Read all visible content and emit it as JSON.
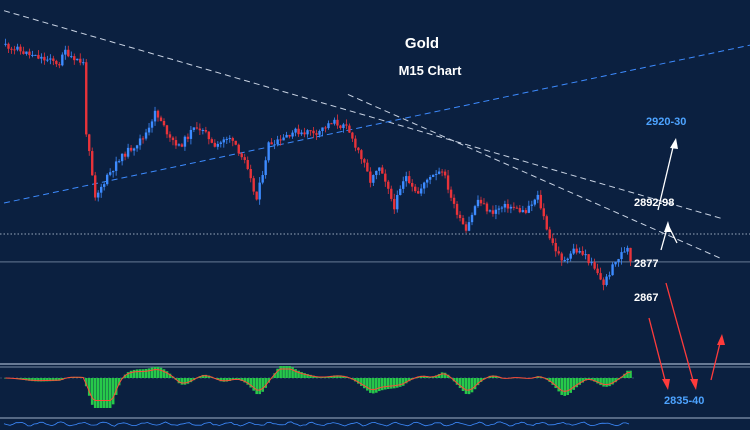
{
  "chart_data": {
    "type": "candlestick",
    "title": "Gold",
    "subtitle": "M15 Chart",
    "y_range": [
      2828,
      2936
    ],
    "candle_count": 210,
    "close_path": [
      [
        0,
        2928
      ],
      [
        10,
        2924
      ],
      [
        18,
        2922
      ],
      [
        20,
        2926
      ],
      [
        26,
        2922
      ],
      [
        27,
        2900
      ],
      [
        30,
        2878
      ],
      [
        34,
        2886
      ],
      [
        40,
        2893
      ],
      [
        46,
        2898
      ],
      [
        50,
        2906
      ],
      [
        54,
        2900
      ],
      [
        58,
        2895
      ],
      [
        64,
        2902
      ],
      [
        70,
        2896
      ],
      [
        76,
        2898
      ],
      [
        80,
        2890
      ],
      [
        84,
        2878
      ],
      [
        88,
        2896
      ],
      [
        96,
        2900
      ],
      [
        104,
        2900
      ],
      [
        110,
        2903
      ],
      [
        114,
        2901
      ],
      [
        118,
        2894
      ],
      [
        122,
        2884
      ],
      [
        125,
        2888
      ],
      [
        130,
        2876
      ],
      [
        134,
        2886
      ],
      [
        138,
        2880
      ],
      [
        142,
        2886
      ],
      [
        146,
        2888
      ],
      [
        150,
        2876
      ],
      [
        154,
        2869
      ],
      [
        158,
        2878
      ],
      [
        162,
        2874
      ],
      [
        168,
        2876
      ],
      [
        174,
        2874
      ],
      [
        178,
        2879
      ],
      [
        182,
        2866
      ],
      [
        186,
        2858
      ],
      [
        190,
        2862
      ],
      [
        194,
        2860
      ],
      [
        200,
        2851
      ],
      [
        204,
        2858
      ],
      [
        208,
        2863
      ],
      [
        209,
        2859
      ]
    ],
    "trendlines": [
      {
        "style": "white-dashed",
        "from": [
          0,
          2939
        ],
        "to": [
          240,
          2872
        ]
      },
      {
        "style": "white-dashed",
        "from": [
          115,
          2912
        ],
        "to": [
          240,
          2859
        ]
      },
      {
        "style": "blue-dashed",
        "from": [
          0,
          2877
        ],
        "to": [
          250,
          2928
        ]
      }
    ],
    "horizontal_levels": [
      {
        "value": 2867,
        "style": "dotted"
      },
      {
        "value": 2858,
        "style": "solid"
      }
    ],
    "annotations": [
      {
        "text": "2920-30",
        "color": "#4da3ff",
        "price": 2925
      },
      {
        "text": "2892-98",
        "color": "#ffffff",
        "price": 2895
      },
      {
        "text": "2877",
        "color": "#ffffff",
        "price": 2877
      },
      {
        "text": "2867",
        "color": "#ffffff",
        "price": 2867
      },
      {
        "text": "2835-40",
        "color": "#4da3ff",
        "price": 2838
      }
    ],
    "colors": {
      "background": "#0b2040",
      "bull_candle": "#3d8bff",
      "bear_candle": "#e8333a",
      "histogram": "#27c94a",
      "signal": "#ff4a3a",
      "projection_up": "#ffffff",
      "projection_down": "#ff3b3b"
    }
  }
}
